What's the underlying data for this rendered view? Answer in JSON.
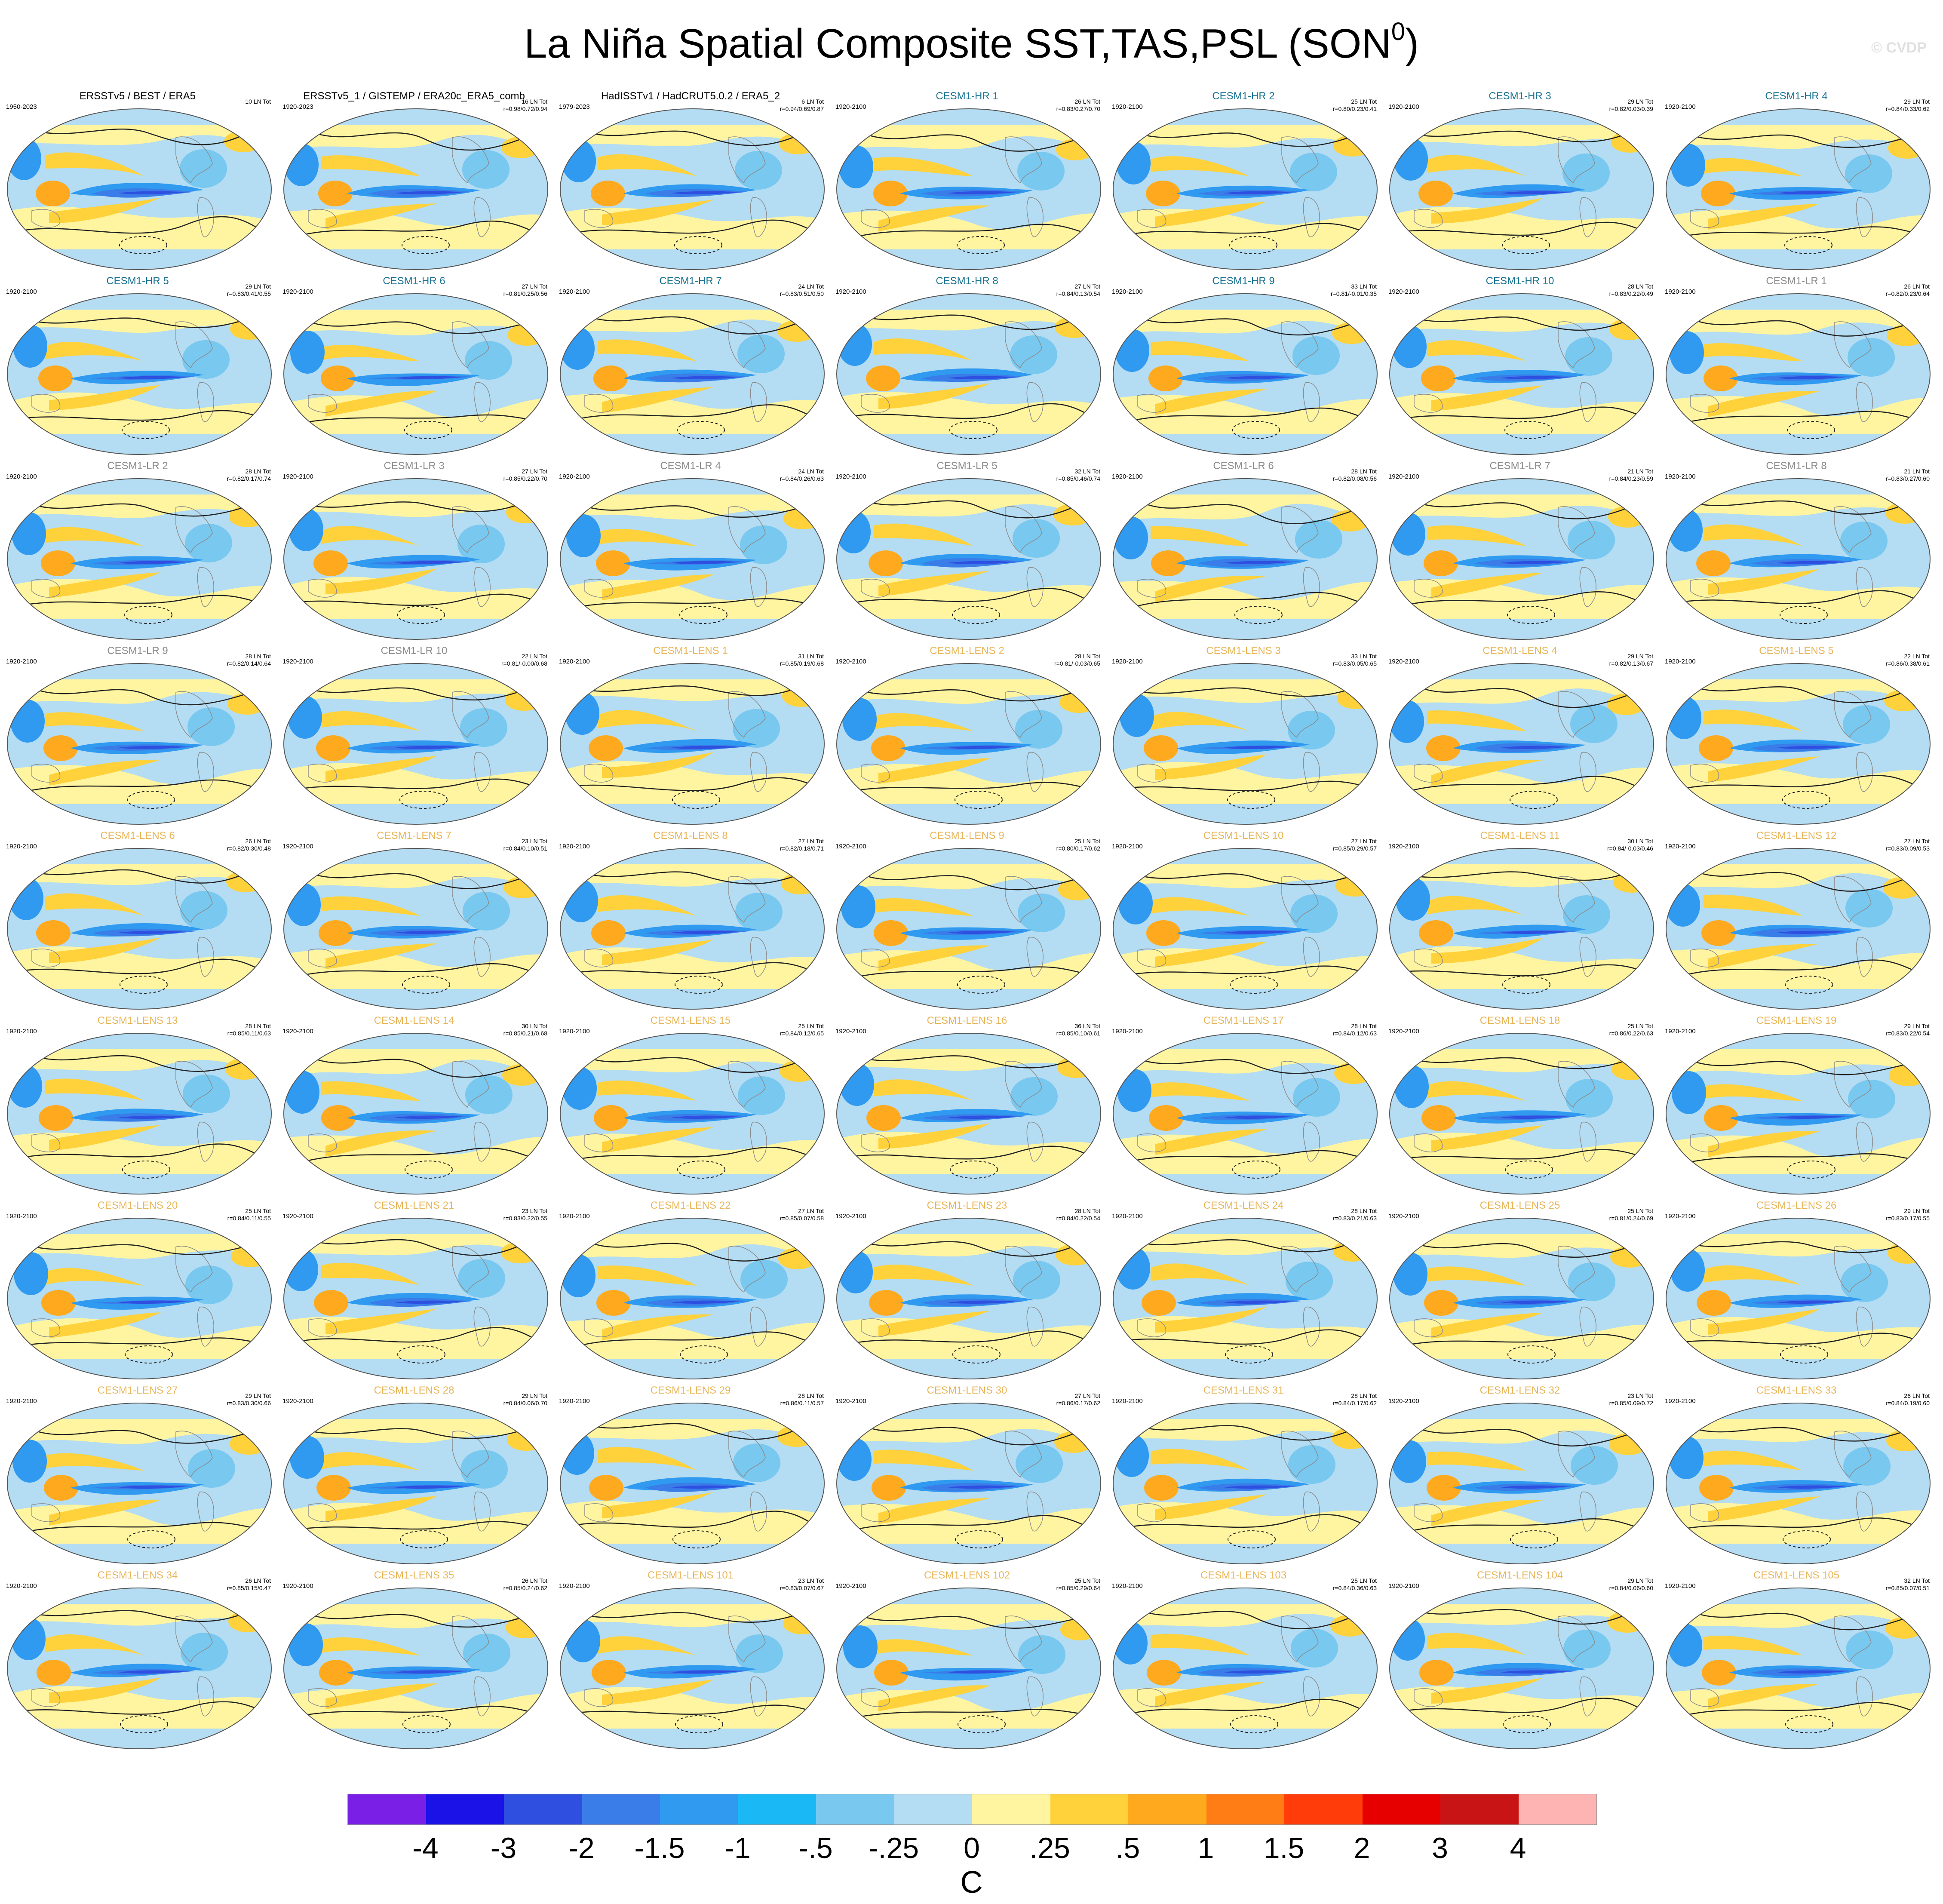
{
  "figure": {
    "title": "La Niña Spatial Composite SST,TAS,PSL (SON",
    "title_sup": "0",
    "title_close": ")",
    "watermark": "© CVDP"
  },
  "panels": [
    {
      "name": "ERSSTv5 / BEST / ERA5",
      "kind": "obs",
      "period": "1950-2023",
      "count": "10 LN Tot",
      "corr": ""
    },
    {
      "name": "ERSSTv5_1 / GISTEMP / ERA20c_ERA5_comb",
      "kind": "obs",
      "period": "1920-2023",
      "count": "16 LN Tot",
      "corr": "r=0.98/0.72/0.94"
    },
    {
      "name": "HadISSTv1 / HadCRUT5.0.2 / ERA5_2",
      "kind": "obs",
      "period": "1979-2023",
      "count": "6 LN Tot",
      "corr": "r=0.94/0.69/0.87"
    },
    {
      "name": "CESM1-HR 1",
      "kind": "hr",
      "period": "1920-2100",
      "count": "26 LN Tot",
      "corr": "r=0.83/0.27/0.70"
    },
    {
      "name": "CESM1-HR 2",
      "kind": "hr",
      "period": "1920-2100",
      "count": "25 LN Tot",
      "corr": "r=0.80/0.23/0.41"
    },
    {
      "name": "CESM1-HR 3",
      "kind": "hr",
      "period": "1920-2100",
      "count": "29 LN Tot",
      "corr": "r=0.82/0.03/0.39"
    },
    {
      "name": "CESM1-HR 4",
      "kind": "hr",
      "period": "1920-2100",
      "count": "29 LN Tot",
      "corr": "r=0.84/0.33/0.62"
    },
    {
      "name": "CESM1-HR 5",
      "kind": "hr",
      "period": "1920-2100",
      "count": "29 LN Tot",
      "corr": "r=0.83/0.41/0.55"
    },
    {
      "name": "CESM1-HR 6",
      "kind": "hr",
      "period": "1920-2100",
      "count": "27 LN Tot",
      "corr": "r=0.81/0.25/0.56"
    },
    {
      "name": "CESM1-HR 7",
      "kind": "hr",
      "period": "1920-2100",
      "count": "24 LN Tot",
      "corr": "r=0.83/0.51/0.50"
    },
    {
      "name": "CESM1-HR 8",
      "kind": "hr",
      "period": "1920-2100",
      "count": "27 LN Tot",
      "corr": "r=0.84/0.13/0.54"
    },
    {
      "name": "CESM1-HR 9",
      "kind": "hr",
      "period": "1920-2100",
      "count": "33 LN Tot",
      "corr": "r=0.81/-0.01/0.35"
    },
    {
      "name": "CESM1-HR 10",
      "kind": "hr",
      "period": "1920-2100",
      "count": "28 LN Tot",
      "corr": "r=0.83/0.22/0.49"
    },
    {
      "name": "CESM1-LR 1",
      "kind": "lr",
      "period": "1920-2100",
      "count": "26 LN Tot",
      "corr": "r=0.82/0.23/0.64"
    },
    {
      "name": "CESM1-LR 2",
      "kind": "lr",
      "period": "1920-2100",
      "count": "28 LN Tot",
      "corr": "r=0.82/0.17/0.74"
    },
    {
      "name": "CESM1-LR 3",
      "kind": "lr",
      "period": "1920-2100",
      "count": "27 LN Tot",
      "corr": "r=0.85/0.22/0.70"
    },
    {
      "name": "CESM1-LR 4",
      "kind": "lr",
      "period": "1920-2100",
      "count": "24 LN Tot",
      "corr": "r=0.84/0.26/0.63"
    },
    {
      "name": "CESM1-LR 5",
      "kind": "lr",
      "period": "1920-2100",
      "count": "32 LN Tot",
      "corr": "r=0.85/0.46/0.74"
    },
    {
      "name": "CESM1-LR 6",
      "kind": "lr",
      "period": "1920-2100",
      "count": "28 LN Tot",
      "corr": "r=0.82/0.08/0.56"
    },
    {
      "name": "CESM1-LR 7",
      "kind": "lr",
      "period": "1920-2100",
      "count": "21 LN Tot",
      "corr": "r=0.84/0.23/0.59"
    },
    {
      "name": "CESM1-LR 8",
      "kind": "lr",
      "period": "1920-2100",
      "count": "21 LN Tot",
      "corr": "r=0.83/0.27/0.60"
    },
    {
      "name": "CESM1-LR 9",
      "kind": "lr",
      "period": "1920-2100",
      "count": "28 LN Tot",
      "corr": "r=0.82/0.14/0.64"
    },
    {
      "name": "CESM1-LR 10",
      "kind": "lr",
      "period": "1920-2100",
      "count": "22 LN Tot",
      "corr": "r=0.81/-0.00/0.68"
    },
    {
      "name": "CESM1-LENS 1",
      "kind": "lens",
      "period": "1920-2100",
      "count": "31 LN Tot",
      "corr": "r=0.85/0.19/0.68"
    },
    {
      "name": "CESM1-LENS 2",
      "kind": "lens",
      "period": "1920-2100",
      "count": "28 LN Tot",
      "corr": "r=0.81/-0.03/0.65"
    },
    {
      "name": "CESM1-LENS 3",
      "kind": "lens",
      "period": "1920-2100",
      "count": "33 LN Tot",
      "corr": "r=0.83/0.05/0.65"
    },
    {
      "name": "CESM1-LENS 4",
      "kind": "lens",
      "period": "1920-2100",
      "count": "29 LN Tot",
      "corr": "r=0.82/0.13/0.67"
    },
    {
      "name": "CESM1-LENS 5",
      "kind": "lens",
      "period": "1920-2100",
      "count": "22 LN Tot",
      "corr": "r=0.86/0.38/0.61"
    },
    {
      "name": "CESM1-LENS 6",
      "kind": "lens",
      "period": "1920-2100",
      "count": "26 LN Tot",
      "corr": "r=0.82/0.30/0.48"
    },
    {
      "name": "CESM1-LENS 7",
      "kind": "lens",
      "period": "1920-2100",
      "count": "23 LN Tot",
      "corr": "r=0.84/0.10/0.51"
    },
    {
      "name": "CESM1-LENS 8",
      "kind": "lens",
      "period": "1920-2100",
      "count": "27 LN Tot",
      "corr": "r=0.82/0.18/0.71"
    },
    {
      "name": "CESM1-LENS 9",
      "kind": "lens",
      "period": "1920-2100",
      "count": "25 LN Tot",
      "corr": "r=0.80/0.17/0.62"
    },
    {
      "name": "CESM1-LENS 10",
      "kind": "lens",
      "period": "1920-2100",
      "count": "27 LN Tot",
      "corr": "r=0.85/0.29/0.57"
    },
    {
      "name": "CESM1-LENS 11",
      "kind": "lens",
      "period": "1920-2100",
      "count": "30 LN Tot",
      "corr": "r=0.84/-0.03/0.46"
    },
    {
      "name": "CESM1-LENS 12",
      "kind": "lens",
      "period": "1920-2100",
      "count": "27 LN Tot",
      "corr": "r=0.83/0.09/0.53"
    },
    {
      "name": "CESM1-LENS 13",
      "kind": "lens",
      "period": "1920-2100",
      "count": "28 LN Tot",
      "corr": "r=0.85/0.11/0.63"
    },
    {
      "name": "CESM1-LENS 14",
      "kind": "lens",
      "period": "1920-2100",
      "count": "30 LN Tot",
      "corr": "r=0.85/0.21/0.68"
    },
    {
      "name": "CESM1-LENS 15",
      "kind": "lens",
      "period": "1920-2100",
      "count": "25 LN Tot",
      "corr": "r=0.84/0.12/0.65"
    },
    {
      "name": "CESM1-LENS 16",
      "kind": "lens",
      "period": "1920-2100",
      "count": "36 LN Tot",
      "corr": "r=0.85/0.10/0.61"
    },
    {
      "name": "CESM1-LENS 17",
      "kind": "lens",
      "period": "1920-2100",
      "count": "28 LN Tot",
      "corr": "r=0.84/0.12/0.63"
    },
    {
      "name": "CESM1-LENS 18",
      "kind": "lens",
      "period": "1920-2100",
      "count": "25 LN Tot",
      "corr": "r=0.86/0.22/0.63"
    },
    {
      "name": "CESM1-LENS 19",
      "kind": "lens",
      "period": "1920-2100",
      "count": "29 LN Tot",
      "corr": "r=0.83/0.22/0.54"
    },
    {
      "name": "CESM1-LENS 20",
      "kind": "lens",
      "period": "1920-2100",
      "count": "25 LN Tot",
      "corr": "r=0.84/0.11/0.55"
    },
    {
      "name": "CESM1-LENS 21",
      "kind": "lens",
      "period": "1920-2100",
      "count": "23 LN Tot",
      "corr": "r=0.83/0.22/0.55"
    },
    {
      "name": "CESM1-LENS 22",
      "kind": "lens",
      "period": "1920-2100",
      "count": "27 LN Tot",
      "corr": "r=0.85/0.07/0.58"
    },
    {
      "name": "CESM1-LENS 23",
      "kind": "lens",
      "period": "1920-2100",
      "count": "28 LN Tot",
      "corr": "r=0.84/0.22/0.54"
    },
    {
      "name": "CESM1-LENS 24",
      "kind": "lens",
      "period": "1920-2100",
      "count": "28 LN Tot",
      "corr": "r=0.83/0.21/0.63"
    },
    {
      "name": "CESM1-LENS 25",
      "kind": "lens",
      "period": "1920-2100",
      "count": "25 LN Tot",
      "corr": "r=0.81/0.24/0.69"
    },
    {
      "name": "CESM1-LENS 26",
      "kind": "lens",
      "period": "1920-2100",
      "count": "29 LN Tot",
      "corr": "r=0.83/0.17/0.55"
    },
    {
      "name": "CESM1-LENS 27",
      "kind": "lens",
      "period": "1920-2100",
      "count": "29 LN Tot",
      "corr": "r=0.83/0.30/0.66"
    },
    {
      "name": "CESM1-LENS 28",
      "kind": "lens",
      "period": "1920-2100",
      "count": "29 LN Tot",
      "corr": "r=0.84/0.06/0.70"
    },
    {
      "name": "CESM1-LENS 29",
      "kind": "lens",
      "period": "1920-2100",
      "count": "28 LN Tot",
      "corr": "r=0.86/0.11/0.57"
    },
    {
      "name": "CESM1-LENS 30",
      "kind": "lens",
      "period": "1920-2100",
      "count": "27 LN Tot",
      "corr": "r=0.86/0.17/0.62"
    },
    {
      "name": "CESM1-LENS 31",
      "kind": "lens",
      "period": "1920-2100",
      "count": "28 LN Tot",
      "corr": "r=0.84/0.17/0.62"
    },
    {
      "name": "CESM1-LENS 32",
      "kind": "lens",
      "period": "1920-2100",
      "count": "23 LN Tot",
      "corr": "r=0.85/0.09/0.72"
    },
    {
      "name": "CESM1-LENS 33",
      "kind": "lens",
      "period": "1920-2100",
      "count": "26 LN Tot",
      "corr": "r=0.84/0.19/0.60"
    },
    {
      "name": "CESM1-LENS 34",
      "kind": "lens",
      "period": "1920-2100",
      "count": "26 LN Tot",
      "corr": "r=0.85/0.15/0.47"
    },
    {
      "name": "CESM1-LENS 35",
      "kind": "lens",
      "period": "1920-2100",
      "count": "26 LN Tot",
      "corr": "r=0.85/0.24/0.62"
    },
    {
      "name": "CESM1-LENS 101",
      "kind": "lens",
      "period": "1920-2100",
      "count": "23 LN Tot",
      "corr": "r=0.83/0.07/0.67"
    },
    {
      "name": "CESM1-LENS 102",
      "kind": "lens",
      "period": "1920-2100",
      "count": "25 LN Tot",
      "corr": "r=0.85/0.29/0.64"
    },
    {
      "name": "CESM1-LENS 103",
      "kind": "lens",
      "period": "1920-2100",
      "count": "25 LN Tot",
      "corr": "r=0.84/0.36/0.63"
    },
    {
      "name": "CESM1-LENS 104",
      "kind": "lens",
      "period": "1920-2100",
      "count": "29 LN Tot",
      "corr": "r=0.84/0.06/0.60"
    },
    {
      "name": "CESM1-LENS 105",
      "kind": "lens",
      "period": "1920-2100",
      "count": "32 LN Tot",
      "corr": "r=0.85/0.07/0.51"
    }
  ],
  "colorbar": {
    "colors": [
      "#7a1fe6",
      "#1a12e6",
      "#2e4fe0",
      "#3a7ce8",
      "#2f9af0",
      "#1ab8f5",
      "#78c8f0",
      "#b4dcf2",
      "#fff5a0",
      "#ffd23c",
      "#ffaa1e",
      "#ff7d14",
      "#ff3c0a",
      "#e60000",
      "#c81414",
      "#ffb4b4"
    ],
    "labels": [
      "-4",
      "-3",
      "-2",
      "-1.5",
      "-1",
      "-.5",
      "-.25",
      "0",
      ".25",
      ".5",
      "1",
      "1.5",
      "2",
      "3",
      "4"
    ],
    "unit": "C"
  },
  "map_colors": {
    "ocean_base": "#b4dcf2",
    "cold_light": "#78c8f0",
    "cold_mid": "#2f9af0",
    "cold_strong": "#3a7ce8",
    "cold_core": "#2e4fe0",
    "warm_light": "#fff5a0",
    "warm_mid": "#ffd23c",
    "warm_strong": "#ffaa1e",
    "contour": "#222222"
  }
}
